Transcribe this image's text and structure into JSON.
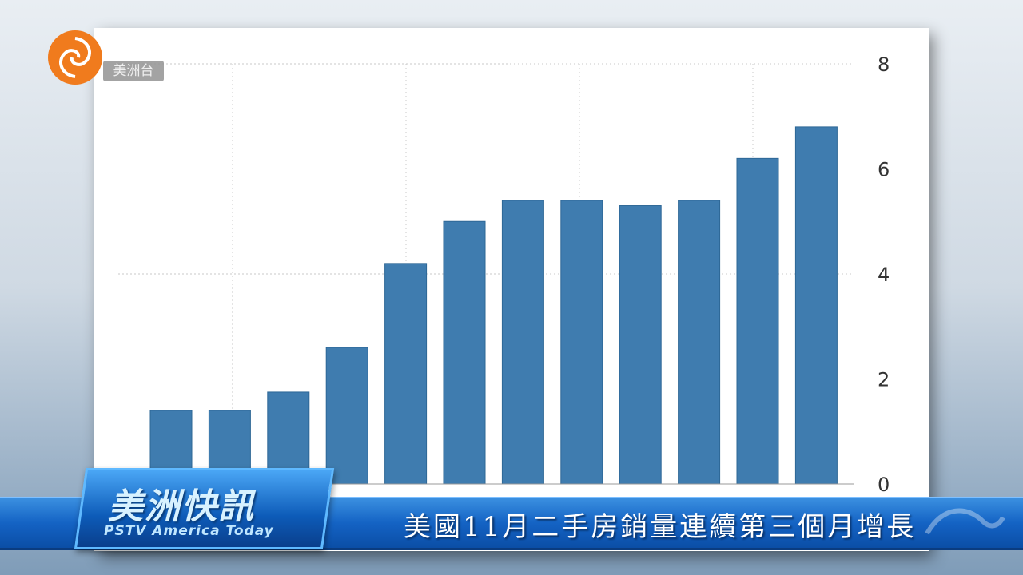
{
  "channel": {
    "logo_text": "美洲台"
  },
  "program": {
    "title": "美洲快訊",
    "subtitle": "PSTV America Today"
  },
  "headline": "美國11月二手房銷量連續第三個月增長",
  "colors": {
    "bar": "#3f7caf",
    "band": "#1463c4",
    "logo": "#f07b1d"
  },
  "chart_data": {
    "type": "bar",
    "title": "",
    "xlabel": "",
    "ylabel": "",
    "ylim": [
      0,
      8
    ],
    "yticks": [
      "0",
      "2",
      "4",
      "6",
      "8"
    ],
    "y_axis_side": "right",
    "grid": true,
    "values": [
      1.4,
      1.4,
      1.75,
      2.6,
      4.2,
      5.0,
      5.4,
      5.4,
      5.3,
      5.4,
      6.2,
      6.8
    ]
  }
}
